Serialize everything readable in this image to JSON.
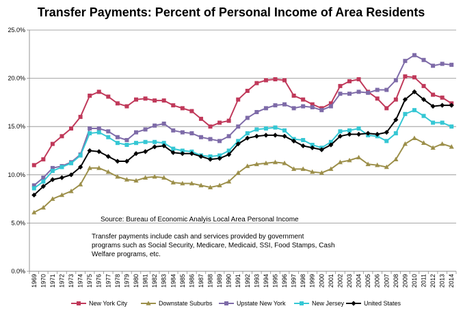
{
  "chart_data": {
    "type": "line",
    "title": "Transfer Payments:  Percent of Personal Income of Area Residents",
    "xlabel": "",
    "ylabel": "",
    "ylim": [
      0,
      25
    ],
    "yticks": [
      "0.0%",
      "5.0%",
      "10.0%",
      "15.0%",
      "20.0%",
      "25.0%"
    ],
    "x": [
      "1969",
      "1970",
      "1971",
      "1972",
      "1973",
      "1974",
      "1975",
      "1976",
      "1977",
      "1978",
      "1979",
      "1980",
      "1981",
      "1982",
      "1983",
      "1984",
      "1985",
      "1986",
      "1987",
      "1988",
      "1989",
      "1990",
      "1991",
      "1992",
      "1993",
      "1994",
      "1995",
      "1996",
      "1997",
      "1998",
      "1999",
      "2000",
      "2001",
      "2002",
      "2003",
      "2004",
      "2005",
      "2006",
      "2007",
      "2008",
      "2009",
      "2010",
      "2011",
      "2012",
      "2013",
      "2014"
    ],
    "grid": "horizontal",
    "legend_position": "bottom",
    "source_text": "Source:  Bureau of Economic Analyis Local Area Personal Income",
    "note_lines": [
      "Transfer payments include cash and services provided by government",
      "programs such as Social Security, Medicare, Medicaid, SSI, Food Stamps, Cash",
      "Welfare programs, etc."
    ],
    "series": [
      {
        "name": "New York City",
        "color": "#c0395a",
        "marker": "square",
        "values": [
          11.0,
          11.6,
          13.2,
          14.0,
          14.8,
          16.0,
          18.2,
          18.6,
          18.1,
          17.4,
          17.1,
          17.8,
          17.9,
          17.7,
          17.7,
          17.2,
          16.9,
          16.6,
          15.8,
          15.0,
          15.4,
          15.6,
          17.8,
          18.7,
          19.5,
          19.8,
          19.9,
          19.8,
          18.2,
          17.8,
          17.3,
          16.9,
          17.4,
          19.2,
          19.7,
          19.9,
          18.6,
          17.9,
          16.9,
          17.8,
          20.2,
          20.1,
          19.2,
          18.3,
          18.0,
          17.4
        ]
      },
      {
        "name": "Downstate Suburbs",
        "color": "#9c8f4a",
        "marker": "triangle",
        "values": [
          6.1,
          6.6,
          7.5,
          7.9,
          8.3,
          9.0,
          10.7,
          10.7,
          10.3,
          9.8,
          9.5,
          9.4,
          9.7,
          9.8,
          9.7,
          9.2,
          9.1,
          9.1,
          8.9,
          8.7,
          8.9,
          9.3,
          10.2,
          10.9,
          11.1,
          11.2,
          11.3,
          11.2,
          10.6,
          10.6,
          10.3,
          10.2,
          10.6,
          11.3,
          11.5,
          11.8,
          11.1,
          11.0,
          10.8,
          11.6,
          13.2,
          13.8,
          13.3,
          12.8,
          13.2,
          12.9
        ]
      },
      {
        "name": "Upstate New York",
        "color": "#7e6ba8",
        "marker": "square",
        "values": [
          8.9,
          9.7,
          10.7,
          10.9,
          11.3,
          12.1,
          14.8,
          14.8,
          14.5,
          13.9,
          13.6,
          14.4,
          14.7,
          15.1,
          15.3,
          14.6,
          14.4,
          14.3,
          13.9,
          13.7,
          13.5,
          14.0,
          15.0,
          15.9,
          16.5,
          16.9,
          17.2,
          17.3,
          16.9,
          17.1,
          17.0,
          16.7,
          17.1,
          18.4,
          18.4,
          18.6,
          18.5,
          18.8,
          18.8,
          19.8,
          21.8,
          22.4,
          21.9,
          21.3,
          21.5,
          21.4
        ]
      },
      {
        "name": "New Jersey",
        "color": "#35c7d4",
        "marker": "square",
        "values": [
          8.6,
          9.3,
          10.4,
          10.8,
          11.2,
          12.0,
          14.3,
          14.4,
          13.9,
          13.3,
          13.1,
          13.3,
          13.4,
          13.4,
          13.3,
          12.7,
          12.5,
          12.4,
          12.0,
          11.9,
          12.0,
          12.5,
          13.5,
          14.3,
          14.7,
          14.8,
          14.9,
          14.6,
          13.7,
          13.6,
          13.1,
          12.8,
          13.4,
          14.5,
          14.6,
          14.8,
          14.1,
          14.0,
          13.5,
          14.3,
          16.3,
          16.7,
          16.1,
          15.4,
          15.4,
          15.0
        ]
      },
      {
        "name": "United States",
        "color": "#000000",
        "marker": "diamond",
        "values": [
          7.9,
          8.8,
          9.5,
          9.7,
          10.0,
          10.8,
          12.5,
          12.4,
          11.9,
          11.4,
          11.4,
          12.2,
          12.4,
          12.9,
          13.0,
          12.3,
          12.2,
          12.2,
          11.9,
          11.6,
          11.7,
          12.1,
          13.2,
          13.8,
          14.0,
          14.1,
          14.1,
          14.0,
          13.5,
          13.0,
          12.8,
          12.6,
          13.1,
          14.0,
          14.2,
          14.2,
          14.3,
          14.2,
          14.4,
          15.7,
          17.8,
          18.6,
          17.8,
          17.1,
          17.2,
          17.2
        ]
      }
    ]
  }
}
